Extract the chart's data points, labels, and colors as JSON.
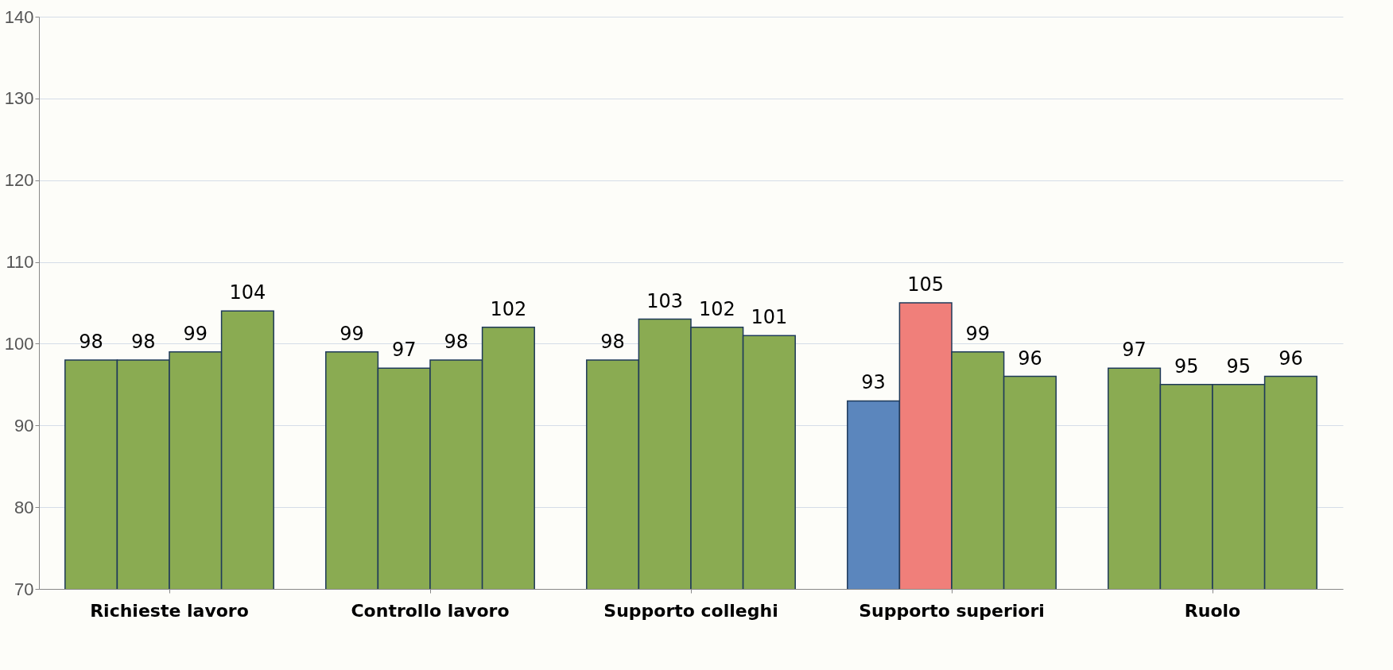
{
  "chart_data": {
    "type": "bar",
    "categories": [
      "Richieste lavoro",
      "Controllo lavoro",
      "Supporto colleghi",
      "Supporto superiori",
      "Ruolo"
    ],
    "series": [
      {
        "colors": [
          "#8aab52",
          "#8aab52",
          "#8aab52",
          "#5b86bd",
          "#8aab52"
        ],
        "values": [
          98,
          99,
          98,
          93,
          97
        ]
      },
      {
        "colors": [
          "#8aab52",
          "#8aab52",
          "#8aab52",
          "#f07f7a",
          "#8aab52"
        ],
        "values": [
          98,
          97,
          103,
          105,
          95
        ]
      },
      {
        "color": "#8aab52",
        "values": [
          99,
          98,
          102,
          99,
          95
        ]
      },
      {
        "color": "#8aab52",
        "values": [
          104,
          102,
          101,
          96,
          96
        ]
      }
    ],
    "ylim": [
      70,
      140
    ],
    "yticks": [
      70,
      80,
      90,
      100,
      110,
      120,
      130,
      140
    ],
    "grid": "y",
    "data_labels": true
  }
}
